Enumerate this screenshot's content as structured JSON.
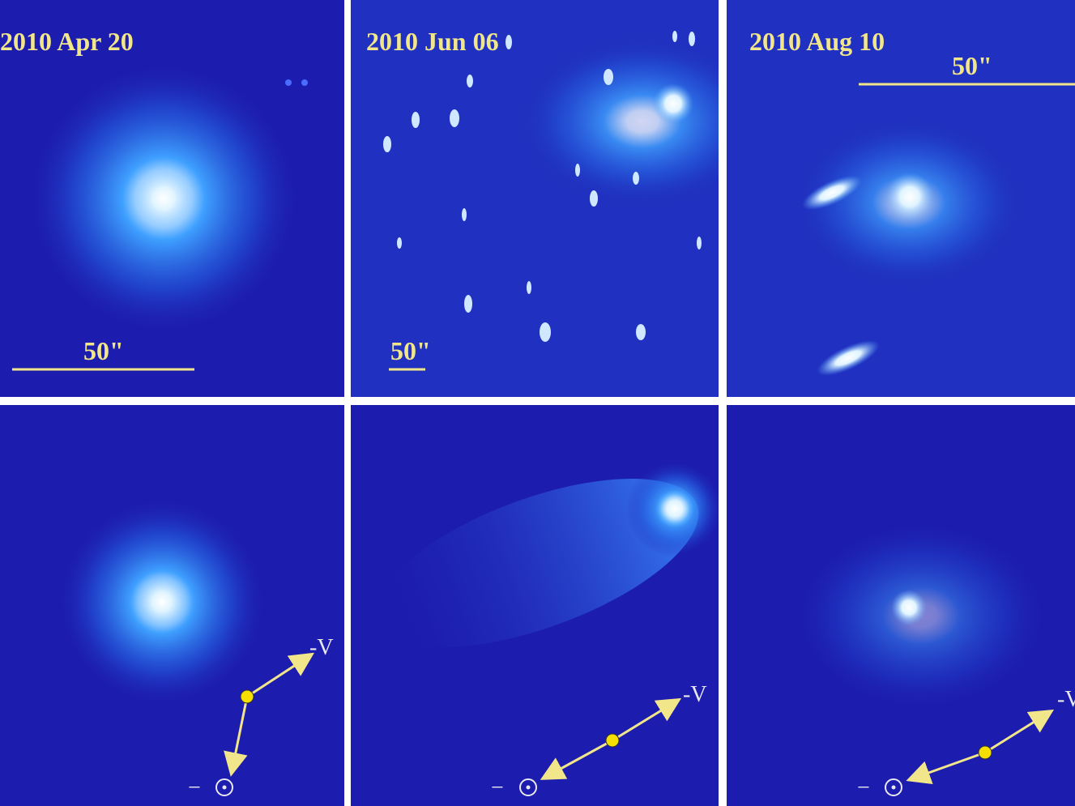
{
  "panels": [
    {
      "date": "2010 Apr 20",
      "scale": "50\"",
      "velocity": "-V",
      "sun": "−"
    },
    {
      "date": "2010 Jun 06",
      "scale": "50\"",
      "velocity": "-V",
      "sun": "−"
    },
    {
      "date": "2010 Aug 10",
      "scale": "50\"",
      "velocity": "-V",
      "sun": "−"
    }
  ]
}
